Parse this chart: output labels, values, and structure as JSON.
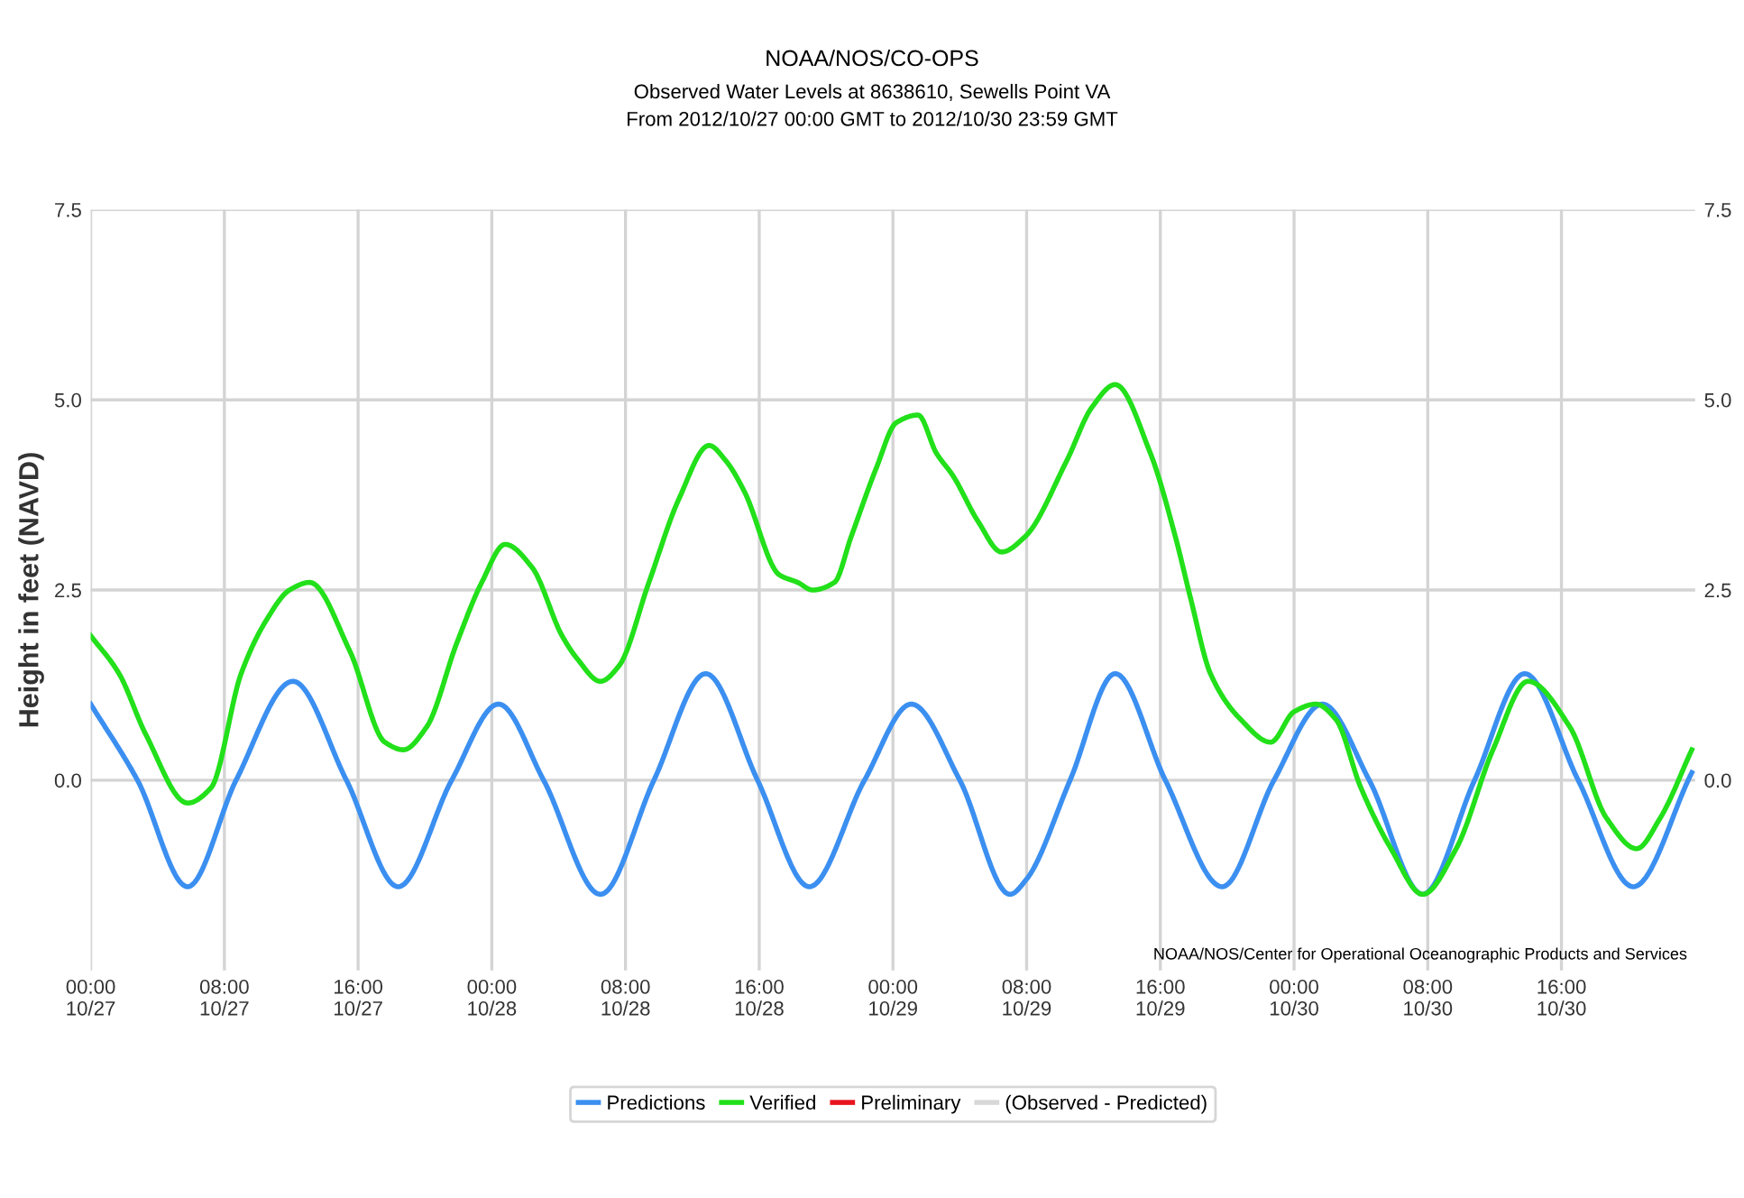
{
  "chart_data": {
    "type": "line",
    "title": "NOAA/NOS/CO-OPS",
    "subtitle": "Observed Water Levels at 8638610, Sewells Point VA\nFrom 2012/10/27 00:00 GMT to 2012/10/30 23:59 GMT",
    "ylabel": "Height in feet (NAVD)",
    "annotations": [
      "NOAA/NOS/Center for Operational Oceanographic Products and Services"
    ],
    "xlim": [
      "2012-10-27T00:00",
      "2012-10-31T00:00"
    ],
    "xticks": [
      {
        "value": "2012-10-27T00:00",
        "label": "00:00\n10/27"
      },
      {
        "value": "2012-10-27T08:00",
        "label": "08:00\n10/27"
      },
      {
        "value": "2012-10-27T16:00",
        "label": "16:00\n10/27"
      },
      {
        "value": "2012-10-28T00:00",
        "label": "00:00\n10/28"
      },
      {
        "value": "2012-10-28T08:00",
        "label": "08:00\n10/28"
      },
      {
        "value": "2012-10-28T16:00",
        "label": "16:00\n10/28"
      },
      {
        "value": "2012-10-29T00:00",
        "label": "00:00\n10/29"
      },
      {
        "value": "2012-10-29T08:00",
        "label": "08:00\n10/29"
      },
      {
        "value": "2012-10-29T16:00",
        "label": "16:00\n10/29"
      },
      {
        "value": "2012-10-30T00:00",
        "label": "00:00\n10/30"
      },
      {
        "value": "2012-10-30T08:00",
        "label": "08:00\n10/30"
      },
      {
        "value": "2012-10-30T16:00",
        "label": "16:00\n10/30"
      }
    ],
    "ylim": [
      -2.5,
      7.5
    ],
    "yticks": [
      {
        "value": 0,
        "label": "0.0"
      },
      {
        "value": 2.5,
        "label": "2.5"
      },
      {
        "value": 5,
        "label": "5.0"
      },
      {
        "value": 7.5,
        "label": "7.5"
      }
    ],
    "y2lim": [
      -2.5,
      7.5
    ],
    "y2ticks": [
      {
        "value": 0,
        "label": "0.0"
      },
      {
        "value": 2.5,
        "label": "2.5"
      },
      {
        "value": 5,
        "label": "5.0"
      },
      {
        "value": 7.5,
        "label": "7.5"
      }
    ],
    "grid": true,
    "legend": "bottom",
    "marker": "none",
    "line_style": "solid",
    "series": [
      {
        "name": "Predictions",
        "color": "#3b8ff0",
        "x": [
          "2012-10-27T00:00",
          "2012-10-27T02:48",
          "2012-10-27T05:48",
          "2012-10-27T08:42",
          "2012-10-27T12:06",
          "2012-10-27T15:18",
          "2012-10-27T18:24",
          "2012-10-27T21:36",
          "2012-10-28T00:24",
          "2012-10-28T03:06",
          "2012-10-28T06:30",
          "2012-10-28T09:42",
          "2012-10-28T12:48",
          "2012-10-28T15:54",
          "2012-10-28T19:00",
          "2012-10-28T22:18",
          "2012-10-29T01:06",
          "2012-10-29T04:00",
          "2012-10-29T07:00",
          "2012-10-29T08:00",
          "2012-10-29T10:36",
          "2012-10-29T13:18",
          "2012-10-29T16:18",
          "2012-10-29T19:42",
          "2012-10-29T22:48",
          "2012-10-30T01:42",
          "2012-10-30T04:30",
          "2012-10-30T07:42",
          "2012-10-30T10:48",
          "2012-10-30T13:48",
          "2012-10-30T17:00",
          "2012-10-30T20:18",
          "2012-10-30T23:48"
        ],
        "values": [
          1.0,
          0,
          -1.4,
          0,
          1.3,
          0,
          -1.4,
          0,
          1.0,
          0,
          -1.5,
          0,
          1.4,
          0,
          -1.4,
          0,
          1.0,
          0,
          -1.5,
          -1.3,
          0,
          1.4,
          0,
          -1.4,
          0,
          1.0,
          0,
          -1.5,
          0,
          1.4,
          0,
          -1.4,
          0.1
        ]
      },
      {
        "name": "Verified",
        "color": "#22e01a",
        "x": [
          "2012-10-27T00:00",
          "2012-10-27T01:42",
          "2012-10-27T03:18",
          "2012-10-27T05:48",
          "2012-10-27T07:12",
          "2012-10-27T09:00",
          "2012-10-27T10:30",
          "2012-10-27T11:54",
          "2012-10-27T13:06",
          "2012-10-27T15:30",
          "2012-10-27T17:36",
          "2012-10-27T18:42",
          "2012-10-27T20:06",
          "2012-10-27T21:54",
          "2012-10-27T23:24",
          "2012-10-28T00:48",
          "2012-10-28T02:24",
          "2012-10-28T04:12",
          "2012-10-28T05:06",
          "2012-10-28T06:30",
          "2012-10-28T07:36",
          "2012-10-28T09:24",
          "2012-10-28T11:12",
          "2012-10-28T13:00",
          "2012-10-28T14:00",
          "2012-10-28T15:06",
          "2012-10-28T17:12",
          "2012-10-28T18:18",
          "2012-10-28T19:12",
          "2012-10-28T20:30",
          "2012-10-28T21:30",
          "2012-10-28T23:00",
          "2012-10-29T00:12",
          "2012-10-29T01:30",
          "2012-10-29T02:36",
          "2012-10-29T03:36",
          "2012-10-29T05:06",
          "2012-10-29T06:30",
          "2012-10-29T07:54",
          "2012-10-29T10:24",
          "2012-10-29T11:54",
          "2012-10-29T13:18",
          "2012-10-29T15:24",
          "2012-10-29T16:54",
          "2012-10-29T17:48",
          "2012-10-29T19:00",
          "2012-10-29T20:48",
          "2012-10-29T22:36",
          "2012-10-30T00:00",
          "2012-10-30T01:18",
          "2012-10-30T02:30",
          "2012-10-30T04:00",
          "2012-10-30T05:48",
          "2012-10-30T07:42",
          "2012-10-30T09:42",
          "2012-10-30T11:54",
          "2012-10-30T14:00",
          "2012-10-30T16:30",
          "2012-10-30T18:42",
          "2012-10-30T20:30",
          "2012-10-30T21:54",
          "2012-10-30T23:48"
        ],
        "values": [
          1.9,
          1.4,
          0.6,
          -0.3,
          -0.1,
          1.4,
          2.1,
          2.5,
          2.6,
          1.7,
          0.5,
          0.4,
          0.7,
          1.8,
          2.6,
          3.1,
          2.8,
          1.9,
          1.6,
          1.3,
          1.5,
          2.6,
          3.7,
          4.4,
          4.2,
          3.8,
          2.7,
          2.6,
          2.5,
          2.6,
          3.2,
          4.1,
          4.7,
          4.8,
          4.3,
          4.0,
          3.4,
          3.0,
          3.2,
          4.2,
          4.9,
          5.2,
          4.3,
          3.2,
          2.4,
          1.4,
          0.8,
          0.5,
          0.9,
          1.0,
          0.8,
          -0.1,
          -0.9,
          -1.5,
          -0.9,
          0.4,
          1.3,
          0.7,
          -0.5,
          -0.9,
          -0.5,
          0.4
        ]
      },
      {
        "name": "Preliminary",
        "color": "#e8141e"
      },
      {
        "name": "(Observed - Predicted)",
        "color": "#d8d8d8"
      }
    ]
  }
}
